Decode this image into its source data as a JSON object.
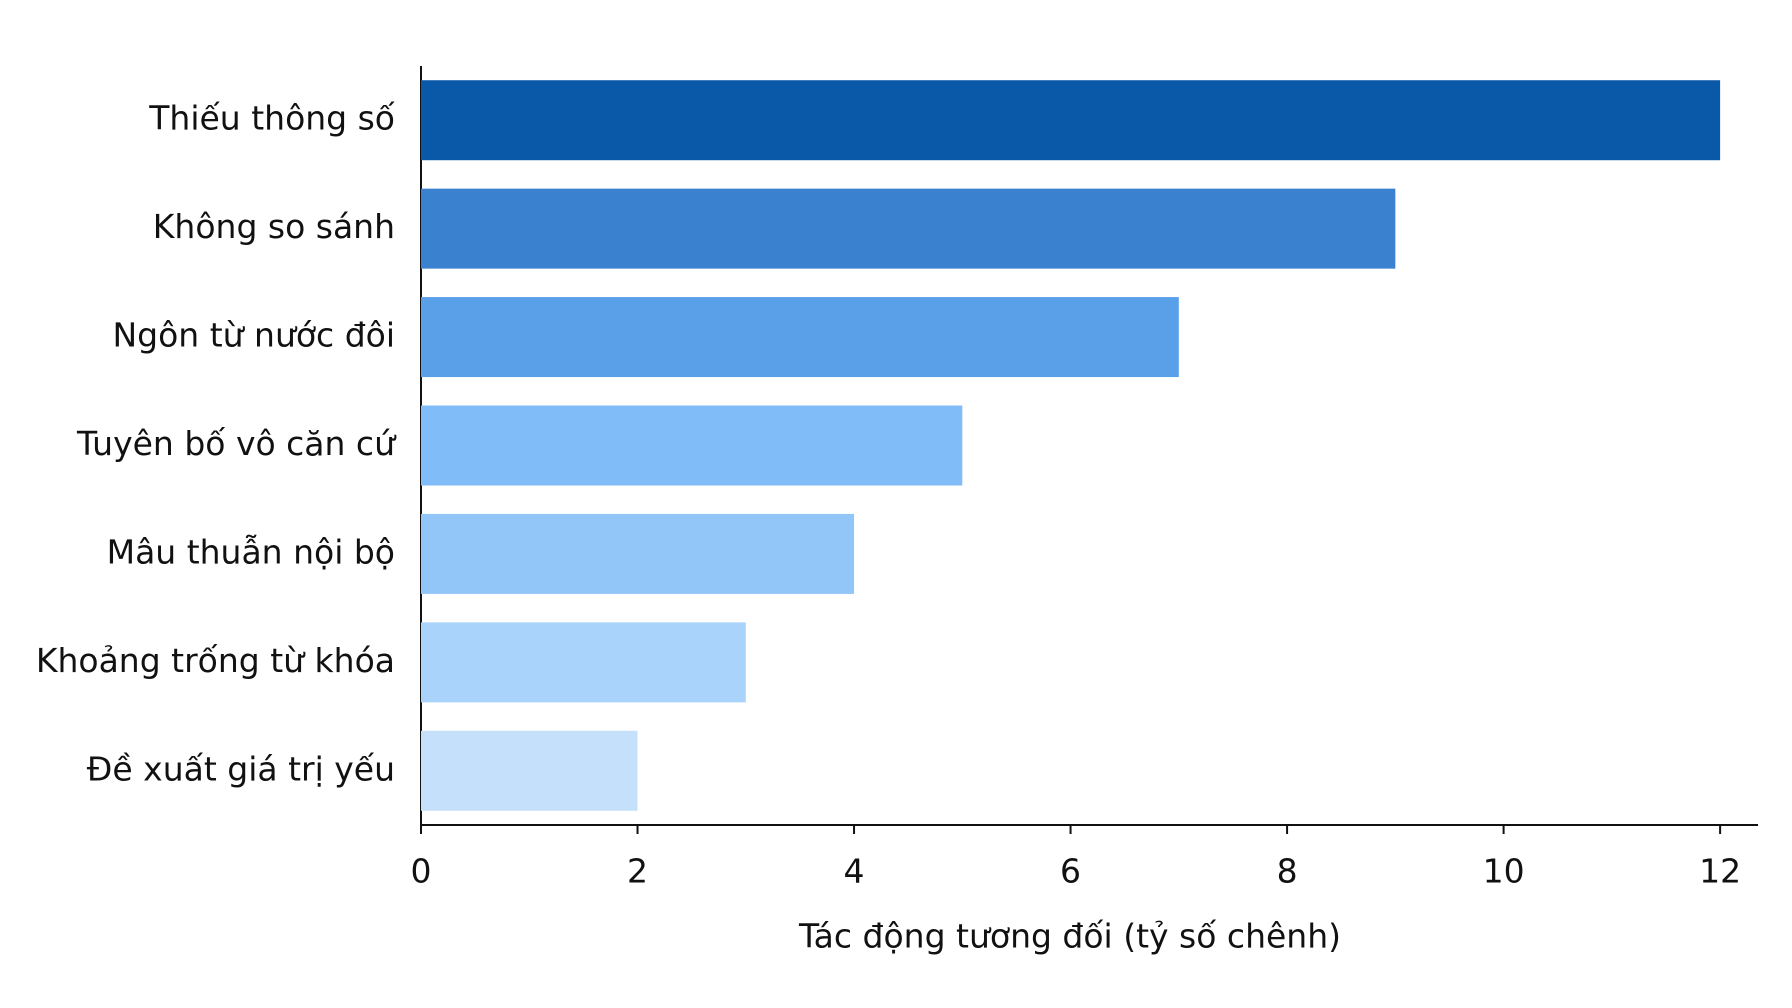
{
  "chart_data": {
    "type": "bar",
    "orientation": "horizontal",
    "categories": [
      "Thiếu thông số",
      "Không so sánh",
      "Ngôn từ nước đôi",
      "Tuyên bố vô căn cứ",
      "Mâu thuẫn nội bộ",
      "Khoảng trống từ khóa",
      "Đề xuất giá trị yếu"
    ],
    "values": [
      12,
      9,
      7,
      5,
      4,
      3,
      2
    ],
    "colors": [
      "#0a58a8",
      "#3a82d0",
      "#5aa0e8",
      "#80bcf8",
      "#93c6f8",
      "#a9d3fa",
      "#c5e0fb"
    ],
    "xlabel": "Tác động tương đối (tỷ số chênh)",
    "xlim": [
      0,
      12.35
    ],
    "xticks": [
      0,
      2,
      4,
      6,
      8,
      10,
      12
    ],
    "grid": false
  }
}
